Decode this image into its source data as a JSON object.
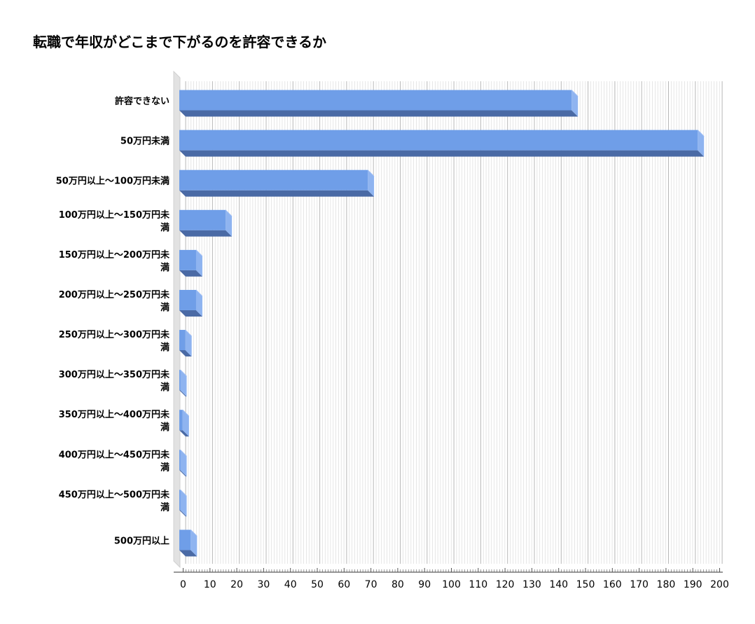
{
  "chart_data": {
    "type": "bar",
    "orientation": "horizontal",
    "title": "転職で年収がどこまで下がるのを許容できるか",
    "xlabel": "",
    "ylabel": "",
    "xlim": [
      0,
      200
    ],
    "grid": true,
    "legend": "none",
    "bar_color": "#6f9ee8",
    "categories": [
      "許容できない",
      "50万円未満",
      "50万円以上～100万円未満",
      "100万円以上～150万円未満",
      "150万円以上～200万円未満",
      "200万円以上～250万円未満",
      "250万円以上～300万円未満",
      "300万円以上～350万円未満",
      "350万円以上～400万円未満",
      "400万円以上～450万円未満",
      "450万円以上～500万円未満",
      "500万円以上"
    ],
    "category_lines": [
      [
        "許容できない"
      ],
      [
        "50万円未満"
      ],
      [
        "50万円以上～100万円未満"
      ],
      [
        "100万円以上～150万円未",
        "満"
      ],
      [
        "150万円以上～200万円未",
        "満"
      ],
      [
        "200万円以上～250万円未",
        "満"
      ],
      [
        "250万円以上～300万円未",
        "満"
      ],
      [
        "300万円以上～350万円未",
        "満"
      ],
      [
        "350万円以上～400万円未",
        "満"
      ],
      [
        "400万円以上～450万円未",
        "満"
      ],
      [
        "450万円以上～500万円未",
        "満"
      ],
      [
        "500万円以上"
      ]
    ],
    "values": [
      146,
      193,
      70,
      17,
      6,
      6,
      2,
      0,
      1,
      0,
      0,
      4
    ],
    "x_ticks": [
      0,
      10,
      20,
      30,
      40,
      50,
      60,
      70,
      80,
      90,
      100,
      110,
      120,
      130,
      140,
      150,
      160,
      170,
      180,
      190,
      200
    ]
  }
}
